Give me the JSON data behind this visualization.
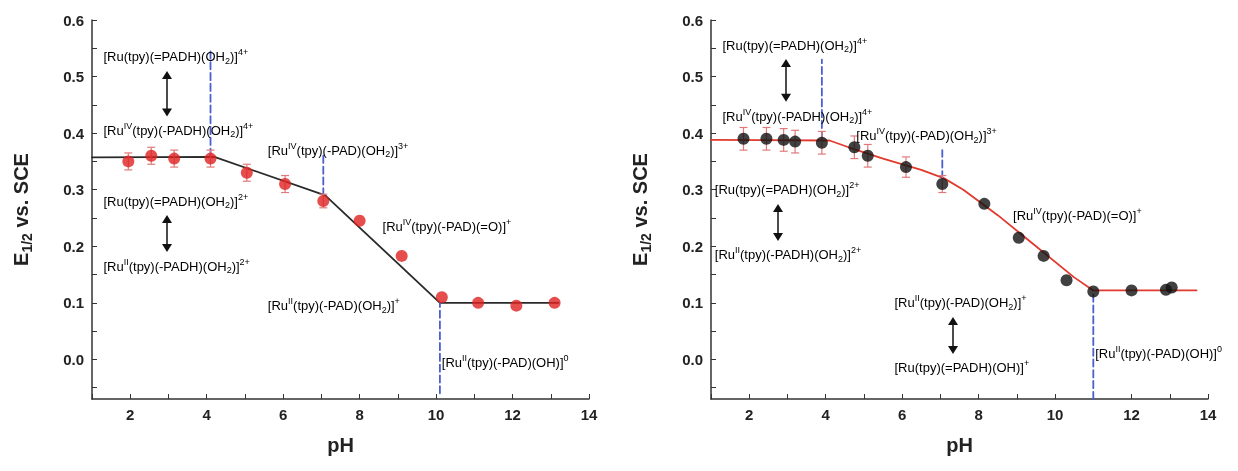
{
  "chart_data": [
    {
      "type": "scatter",
      "xlabel": "pH",
      "ylabel": "E$_{1/2}$ vs. SCE",
      "xlim": [
        1,
        14
      ],
      "ylim": [
        -0.07,
        0.6
      ],
      "xticks": [
        {
          "value": 1,
          "label": null
        },
        2,
        {
          "value": 3,
          "label": null
        },
        4,
        {
          "value": 5,
          "label": null
        },
        6,
        {
          "value": 7,
          "label": null
        },
        8,
        {
          "value": 9,
          "label": null
        },
        10,
        {
          "value": 11,
          "label": null
        },
        12,
        {
          "value": 13,
          "label": null
        },
        14
      ],
      "yticks": [
        {
          "value": -0.05,
          "label": null
        },
        {
          "value": 0,
          "label": "0.0"
        },
        {
          "value": 0.05,
          "label": null
        },
        0.1,
        {
          "value": 0.15,
          "label": null
        },
        0.2,
        {
          "value": 0.25,
          "label": null
        },
        0.3,
        {
          "value": 0.35,
          "label": null
        },
        0.4,
        {
          "value": 0.45,
          "label": null
        },
        0.5,
        {
          "value": 0.55,
          "label": null
        },
        0.6
      ],
      "series": [
        {
          "type": "line",
          "marker": "none",
          "color": "#2a2a2a",
          "x": [
            1,
            4.2,
            7.1,
            10.1,
            13.2
          ],
          "values": [
            0.357,
            0.358,
            0.29,
            0.1,
            0.1
          ]
        },
        {
          "type": "line",
          "marker": "none",
          "line_style": "dashed",
          "color": "#4a5fd0",
          "x": [
            4.1,
            4.1
          ],
          "values": [
            0.36,
            0.55
          ]
        },
        {
          "type": "line",
          "marker": "none",
          "line_style": "dashed",
          "color": "#4a5fd0",
          "x": [
            7.05,
            7.05
          ],
          "values": [
            0.29,
            0.36
          ]
        },
        {
          "type": "line",
          "marker": "none",
          "line_style": "dashed",
          "color": "#4a5fd0",
          "x": [
            10.1,
            10.1
          ],
          "values": [
            -0.06,
            0.1
          ]
        },
        {
          "marker": "circle",
          "color": "#e02222",
          "x": [
            1.95,
            2.55,
            3.15,
            4.1,
            5.05,
            6.05,
            7.05,
            8,
            9.1,
            10.15,
            11.1,
            12.1,
            13.1
          ],
          "values": [
            0.35,
            0.36,
            0.355,
            0.355,
            0.33,
            0.31,
            0.28,
            0.245,
            0.183,
            0.11,
            0.1,
            0.095,
            0.1
          ],
          "errors": [
            0.015,
            0.015,
            0.015,
            0.015,
            0.015,
            0.015,
            0.012,
            null,
            null,
            null,
            null,
            null,
            null
          ]
        }
      ],
      "annotations": [
        "[Ru(tpy)(=PADH)(OH$_{2}$)]$^{4+}$",
        "[Ru$^{IV}$(tpy)(-PADH)(OH$_{2}$)]$^{4+}$",
        "[Ru$^{IV}$(tpy)(-PAD)(OH$_{2}$)]$^{3+}$",
        "[Ru(tpy)(=PADH)(OH$_{2}$)]$^{2+}$",
        "[Ru$^{II}$(tpy)(-PADH)(OH$_{2}$)]$^{2+}$",
        "[Ru$^{IV}$(tpy)(-PAD)(=O)]$^{+}$",
        "[Ru$^{II}$(tpy)(-PAD)(OH$_{2}$)]$^{+}$",
        "[Ru$^{II}$(tpy)(-PAD)(OH)]$^{0}$"
      ]
    },
    {
      "type": "scatter",
      "xlabel": "pH",
      "ylabel": "E$_{1/2}$ vs. SCE",
      "xlim": [
        1,
        14
      ],
      "ylim": [
        -0.07,
        0.6
      ],
      "xticks": [
        {
          "value": 1,
          "label": null
        },
        2,
        {
          "value": 3,
          "label": null
        },
        4,
        {
          "value": 5,
          "label": null
        },
        6,
        {
          "value": 7,
          "label": null
        },
        8,
        {
          "value": 9,
          "label": null
        },
        10,
        {
          "value": 11,
          "label": null
        },
        12,
        {
          "value": 13,
          "label": null
        },
        14
      ],
      "yticks": [
        {
          "value": -0.05,
          "label": null
        },
        {
          "value": 0,
          "label": "0.0"
        },
        {
          "value": 0.05,
          "label": null
        },
        0.1,
        {
          "value": 0.15,
          "label": null
        },
        0.2,
        {
          "value": 0.25,
          "label": null
        },
        0.3,
        {
          "value": 0.35,
          "label": null
        },
        0.4,
        {
          "value": 0.45,
          "label": null
        },
        0.5,
        {
          "value": 0.55,
          "label": null
        },
        0.6
      ],
      "series": [
        {
          "type": "line",
          "marker": "none",
          "color": "#e03a2e",
          "x": [
            1,
            4.1,
            4.6,
            5.5,
            6.5,
            7.1,
            7.6,
            8.5,
            9.5,
            10.5,
            11,
            13.7
          ],
          "values": [
            0.388,
            0.387,
            0.375,
            0.355,
            0.335,
            0.32,
            0.3,
            0.255,
            0.2,
            0.145,
            0.122,
            0.122
          ]
        },
        {
          "type": "line",
          "marker": "none",
          "line_style": "dashed",
          "color": "#4a5fd0",
          "x": [
            3.9,
            3.9
          ],
          "values": [
            0.39,
            0.53
          ]
        },
        {
          "type": "line",
          "marker": "none",
          "line_style": "dashed",
          "color": "#4a5fd0",
          "x": [
            7.05,
            7.05
          ],
          "values": [
            0.32,
            0.37
          ]
        },
        {
          "type": "line",
          "marker": "none",
          "line_style": "dashed",
          "color": "#4a5fd0",
          "x": [
            11,
            11
          ],
          "values": [
            -0.07,
            0.12
          ]
        },
        {
          "marker": "circle",
          "color": "#111111",
          "x": [
            1.85,
            2.45,
            2.9,
            3.2,
            3.9,
            4.75,
            5.1,
            6.1,
            7.05,
            8.15,
            9.05,
            9.7,
            10.3,
            11,
            12,
            12.9,
            13.05
          ],
          "values": [
            0.39,
            0.39,
            0.388,
            0.385,
            0.383,
            0.375,
            0.36,
            0.34,
            0.31,
            0.275,
            0.215,
            0.183,
            0.14,
            0.12,
            0.122,
            0.123,
            0.127
          ],
          "errors": [
            0.02,
            0.02,
            0.02,
            0.02,
            0.02,
            0.02,
            0.02,
            0.018,
            0.015,
            null,
            null,
            null,
            null,
            null,
            null,
            null,
            null
          ]
        }
      ],
      "annotations": [
        "[Ru(tpy)(=PADH)(OH$_{2}$)]$^{4+}$",
        "[Ru$^{IV}$(tpy)(-PADH)(OH$_{2}$)]$^{4+}$",
        "[Ru$^{IV}$(tpy)(-PAD)(OH$_{2}$)]$^{3+}$",
        "[Ru(tpy)(=PADH)(OH$_{2}$)]$^{2+}$",
        "[Ru$^{II}$(tpy)(-PADH)(OH$_{2}$)]$^{2+}$",
        "[Ru$^{IV}$(tpy)(-PAD)(=O)]$^{+}$",
        "[Ru$^{II}$(tpy)(-PAD)(OH$_{2}$)]$^{+}$",
        "[Ru(tpy)(=PADH)(OH)]$^{+}$",
        "[Ru$^{II}$(tpy)(-PAD)(OH)]$^{0}$"
      ]
    }
  ]
}
